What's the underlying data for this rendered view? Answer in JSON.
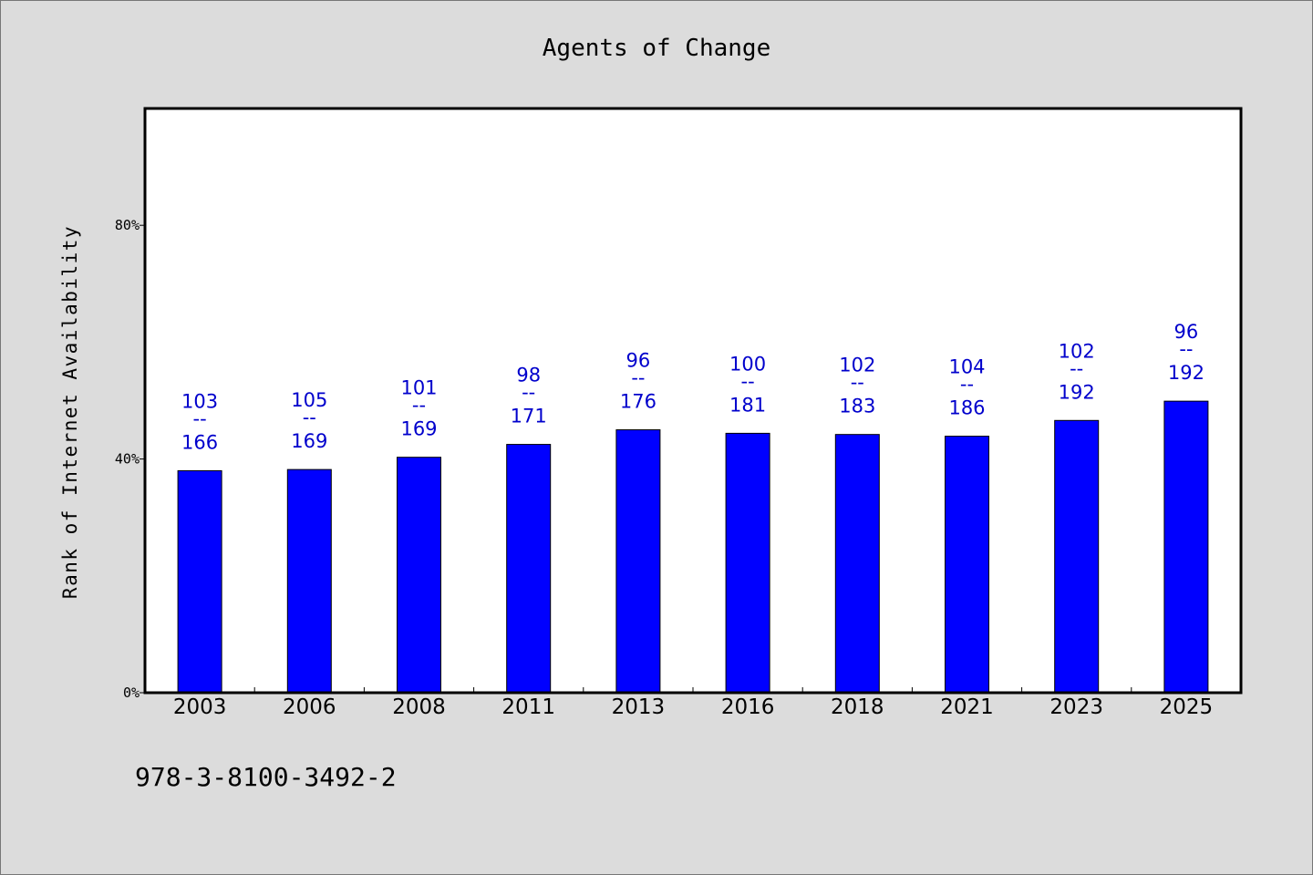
{
  "chart_data": {
    "type": "bar",
    "title": "Agents of Change",
    "xlabel": "",
    "ylabel": "Rank of Internet Availability",
    "ylim": [
      0,
      100
    ],
    "yticks": [
      0,
      40,
      80
    ],
    "ytick_labels": [
      "0%",
      "40%",
      "80%"
    ],
    "categories": [
      "2003",
      "2006",
      "2008",
      "2011",
      "2013",
      "2016",
      "2018",
      "2021",
      "2023",
      "2025"
    ],
    "values": [
      38.0,
      38.2,
      40.3,
      42.5,
      45.0,
      44.4,
      44.2,
      43.9,
      46.6,
      49.9
    ],
    "labels_top": [
      "103",
      "105",
      "101",
      "98",
      "96",
      "100",
      "102",
      "104",
      "102",
      "96"
    ],
    "labels_bottom": [
      "166",
      "169",
      "169",
      "171",
      "176",
      "181",
      "183",
      "186",
      "192",
      "192"
    ],
    "label_separator": "--",
    "bar_color": "#0000ff",
    "label_color": "#0000cc",
    "grid": false,
    "legend": "none"
  },
  "footnote": "978-3-8100-3492-2"
}
